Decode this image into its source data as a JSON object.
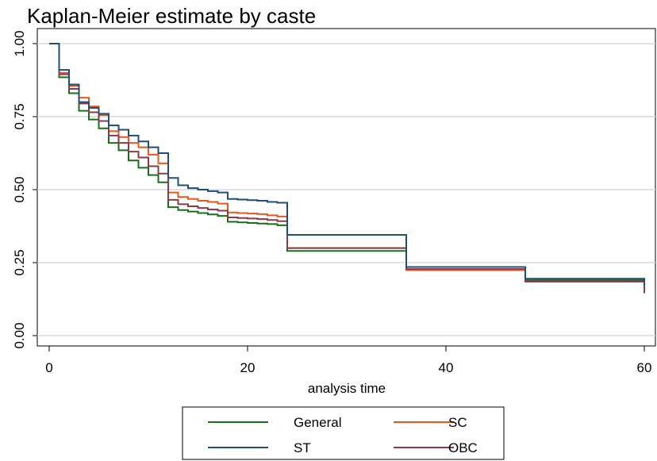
{
  "chart_data": {
    "type": "line",
    "title": "Kaplan-Meier estimate by caste",
    "xlabel": "analysis time",
    "ylabel": "",
    "xlim": [
      0,
      60
    ],
    "ylim": [
      0,
      1
    ],
    "x_ticks": [
      0,
      20,
      40,
      60
    ],
    "y_ticks": [
      0,
      0.25,
      0.5,
      0.75,
      1
    ],
    "x_tick_labels": [
      "0",
      "20",
      "40",
      "60"
    ],
    "y_tick_labels": [
      "0.00",
      "0.25",
      "0.50",
      "0.75",
      "1.00"
    ],
    "grid": "horizontal",
    "legend_position": "bottom",
    "series": [
      {
        "name": "General",
        "color": "#1a6e1a",
        "times": [
          0,
          1,
          2,
          3,
          4,
          5,
          6,
          7,
          8,
          9,
          10,
          11,
          12,
          13,
          14,
          15,
          16,
          17,
          18,
          19,
          20,
          21,
          22,
          23,
          24,
          36,
          48,
          60
        ],
        "values": [
          1.0,
          0.885,
          0.83,
          0.77,
          0.74,
          0.71,
          0.66,
          0.635,
          0.6,
          0.575,
          0.55,
          0.525,
          0.44,
          0.43,
          0.425,
          0.42,
          0.415,
          0.41,
          0.39,
          0.388,
          0.386,
          0.384,
          0.382,
          0.378,
          0.29,
          0.225,
          0.19,
          0.16
        ]
      },
      {
        "name": "SC",
        "color": "#e8581c",
        "times": [
          0,
          1,
          2,
          3,
          4,
          5,
          6,
          7,
          8,
          9,
          10,
          11,
          12,
          13,
          14,
          15,
          16,
          17,
          18,
          19,
          20,
          21,
          22,
          23,
          24,
          36,
          48,
          60
        ],
        "values": [
          1.0,
          0.9,
          0.855,
          0.815,
          0.785,
          0.755,
          0.7,
          0.68,
          0.66,
          0.645,
          0.62,
          0.59,
          0.49,
          0.475,
          0.468,
          0.462,
          0.458,
          0.452,
          0.422,
          0.42,
          0.418,
          0.416,
          0.412,
          0.408,
          0.3,
          0.225,
          0.185,
          0.155
        ]
      },
      {
        "name": "ST",
        "color": "#1f4e79",
        "times": [
          0,
          1,
          2,
          3,
          4,
          5,
          6,
          7,
          8,
          9,
          10,
          11,
          12,
          13,
          14,
          15,
          16,
          17,
          18,
          19,
          20,
          21,
          22,
          23,
          24,
          36,
          48,
          60
        ],
        "values": [
          1.0,
          0.91,
          0.86,
          0.8,
          0.78,
          0.76,
          0.72,
          0.705,
          0.685,
          0.665,
          0.645,
          0.625,
          0.54,
          0.515,
          0.505,
          0.5,
          0.495,
          0.49,
          0.468,
          0.466,
          0.464,
          0.462,
          0.458,
          0.455,
          0.345,
          0.235,
          0.195,
          0.17
        ]
      },
      {
        "name": "OBC",
        "color": "#8b3a4a",
        "times": [
          0,
          1,
          2,
          3,
          4,
          5,
          6,
          7,
          8,
          9,
          10,
          11,
          12,
          13,
          14,
          15,
          16,
          17,
          18,
          19,
          20,
          21,
          22,
          23,
          24,
          36,
          48,
          60
        ],
        "values": [
          1.0,
          0.895,
          0.845,
          0.795,
          0.765,
          0.735,
          0.685,
          0.66,
          0.63,
          0.61,
          0.58,
          0.555,
          0.465,
          0.45,
          0.443,
          0.437,
          0.432,
          0.428,
          0.405,
          0.403,
          0.401,
          0.399,
          0.396,
          0.392,
          0.3,
          0.228,
          0.185,
          0.145
        ]
      }
    ]
  }
}
